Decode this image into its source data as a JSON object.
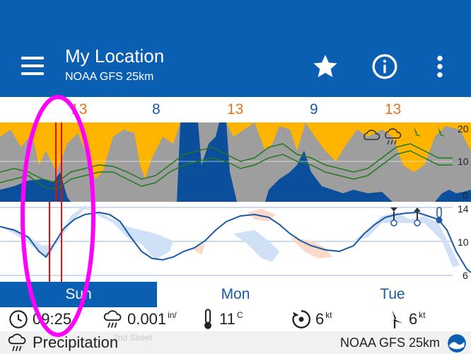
{
  "header": {
    "title": "My Location",
    "subtitle": "NOAA GFS 25km",
    "icons": [
      "menu-icon",
      "star-icon",
      "info-icon",
      "more-vert-icon"
    ]
  },
  "timeline": {
    "hours": [
      {
        "label": "13",
        "color": "orange"
      },
      {
        "label": "8",
        "color": "blue"
      },
      {
        "label": "13",
        "color": "orange"
      },
      {
        "label": "9",
        "color": "blue"
      },
      {
        "label": "13",
        "color": "orange"
      }
    ]
  },
  "cloud_panel": {
    "axis": [
      "20",
      "10",
      "0"
    ],
    "weather_icons": [
      "cloud-icon",
      "rain-cloud-icon",
      "wind-turbine-icon",
      "wind-turbine-icon"
    ]
  },
  "temp_panel": {
    "axis": [
      "14",
      "10",
      "6"
    ]
  },
  "days": [
    {
      "label": "Sun",
      "selected": true
    },
    {
      "label": "Mon",
      "selected": false
    },
    {
      "label": "Tue",
      "selected": false
    }
  ],
  "info": {
    "time": "09:25",
    "precip_value": "0.001",
    "precip_unit": "in/",
    "temp_value": "11",
    "temp_unit": "C",
    "gust_value": "6",
    "gust_unit": "kt",
    "wind_value": "6",
    "wind_unit": "kt"
  },
  "footer": {
    "layer_label": "Precipitation",
    "model_label": "NOAA GFS 25km",
    "street": "2nd Street"
  },
  "colors": {
    "primary": "#0b5fb3",
    "sun": "#ffb400",
    "cloud": "#9e9e9e",
    "rain": "#0b4f9c",
    "temp_line": "#1a5aa6",
    "annotation": "#ff00ff",
    "cursor": "#ff0000"
  }
}
